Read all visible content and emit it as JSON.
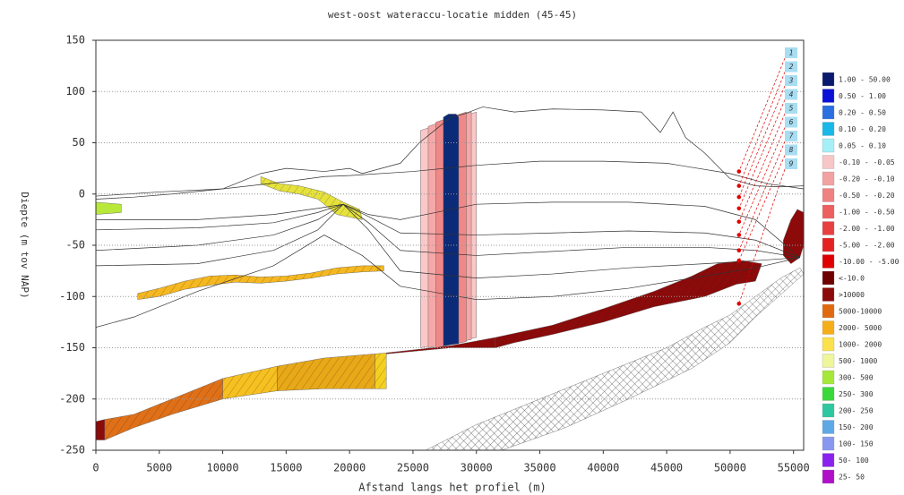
{
  "chart_data": {
    "type": "cross-section",
    "title": "west-oost wateraccu-locatie midden (45-45)",
    "xlabel": "Afstand langs het profiel (m)",
    "ylabel": "Diepte (m tov NAP)",
    "xlim": [
      0,
      55800
    ],
    "ylim": [
      -250,
      150
    ],
    "xticks": [
      0,
      5000,
      10000,
      15000,
      20000,
      25000,
      30000,
      35000,
      40000,
      45000,
      50000,
      55000
    ],
    "yticks": [
      -250,
      -200,
      -150,
      -100,
      -50,
      0,
      50,
      100,
      150
    ],
    "grid": true,
    "lines": [
      {
        "color": "#333333",
        "x": [
          0,
          3000,
          6000,
          10000,
          13000,
          15000,
          18000,
          20000,
          21000,
          24000,
          25500,
          26500,
          28000,
          29000,
          30500,
          33000,
          36000,
          40000,
          43000,
          44500,
          45500,
          46500,
          48000,
          50000,
          52000,
          54000,
          55800
        ],
        "values": [
          -5,
          -3,
          0,
          5,
          20,
          25,
          22,
          25,
          20,
          30,
          50,
          60,
          75,
          78,
          85,
          80,
          83,
          82,
          80,
          60,
          80,
          55,
          40,
          15,
          8,
          7,
          8
        ]
      },
      {
        "color": "#333333",
        "x": [
          0,
          5000,
          10000,
          15000,
          18000,
          20000,
          25000,
          30000,
          35000,
          40000,
          45000,
          50000,
          53000,
          55800
        ],
        "values": [
          -2,
          2,
          5,
          12,
          17,
          18,
          22,
          28,
          32,
          32,
          30,
          20,
          10,
          5
        ]
      },
      {
        "color": "#333333",
        "x": [
          0,
          8000,
          14000,
          17500,
          19500,
          21500,
          24000,
          30000,
          36000,
          42000,
          48000,
          52000,
          55500
        ],
        "values": [
          -25,
          -25,
          -20,
          -14,
          -10,
          -20,
          -25,
          -10,
          -8,
          -8,
          -12,
          -25,
          -62
        ]
      },
      {
        "color": "#333333",
        "x": [
          0,
          8000,
          14000,
          17500,
          19500,
          21500,
          24000,
          30000,
          36000,
          42000,
          48000,
          52000,
          55500
        ],
        "values": [
          -35,
          -33,
          -28,
          -18,
          -10,
          -22,
          -38,
          -40,
          -38,
          -36,
          -38,
          -45,
          -62
        ]
      },
      {
        "color": "#333333",
        "x": [
          0,
          8000,
          14000,
          17500,
          19500,
          21500,
          24000,
          30000,
          36000,
          42000,
          48000,
          52000,
          55500
        ],
        "values": [
          -55,
          -50,
          -40,
          -25,
          -10,
          -28,
          -55,
          -60,
          -56,
          -52,
          -52,
          -55,
          -62
        ]
      },
      {
        "color": "#333333",
        "x": [
          0,
          8000,
          14000,
          17500,
          19500,
          21500,
          24000,
          30000,
          36000,
          42000,
          48000,
          52000,
          55500
        ],
        "values": [
          -70,
          -68,
          -55,
          -35,
          -10,
          -35,
          -75,
          -82,
          -78,
          -72,
          -68,
          -65,
          -62
        ]
      },
      {
        "color": "#333333",
        "x": [
          0,
          3000,
          8000,
          14000,
          18000,
          21000,
          24000,
          30000,
          36000,
          42000,
          48000,
          52000,
          55500
        ],
        "values": [
          -130,
          -120,
          -95,
          -70,
          -40,
          -60,
          -90,
          -103,
          -100,
          -92,
          -80,
          -72,
          -62
        ]
      }
    ],
    "bodies": [
      {
        "color": "#8c0a0a",
        "hatch": false,
        "x": [
          0,
          700,
          700,
          0
        ],
        "values": [
          -222,
          -220,
          -240,
          -240
        ]
      },
      {
        "color": "#e07018",
        "hatch": true,
        "x": [
          700,
          3000,
          6000,
          10000,
          10000,
          6000,
          3000,
          700
        ],
        "values": [
          -220,
          -215,
          -200,
          -180,
          -200,
          -215,
          -228,
          -240
        ]
      },
      {
        "color": "#f6c020",
        "hatch": true,
        "x": [
          10000,
          14300,
          14300,
          10000
        ],
        "values": [
          -180,
          -168,
          -192,
          -200
        ]
      },
      {
        "color": "#e8a818",
        "hatch": true,
        "x": [
          14300,
          18000,
          22000,
          22000,
          18000,
          14300
        ],
        "values": [
          -168,
          -160,
          -156,
          -190,
          -190,
          -192
        ]
      },
      {
        "color": "#f6d020",
        "hatch": true,
        "x": [
          22000,
          22900,
          22900,
          22000
        ],
        "values": [
          -156,
          -155,
          -190,
          -190
        ]
      },
      {
        "color": "#8c0a0a",
        "hatch": false,
        "x": [
          22900,
          28000,
          31500,
          31500,
          28000,
          22900
        ],
        "values": [
          -155,
          -148,
          -140,
          -150,
          -150,
          -156
        ]
      },
      {
        "color": "#8c0a0a",
        "hatch": true,
        "x": [
          31500,
          36000,
          40000,
          44000,
          47000,
          49000,
          51000,
          52500,
          52000,
          50500,
          48000,
          44000,
          40000,
          36000,
          33000,
          31500
        ],
        "values": [
          -140,
          -128,
          -112,
          -95,
          -80,
          -68,
          -65,
          -68,
          -85,
          -88,
          -100,
          -110,
          -125,
          -137,
          -145,
          -150
        ]
      },
      {
        "color": "#8c0a0a",
        "hatch": false,
        "x": [
          54200,
          54800,
          55300,
          55800,
          55800,
          55500,
          54800,
          54200
        ],
        "values": [
          -45,
          -25,
          -15,
          -18,
          -50,
          -62,
          -68,
          -60
        ]
      },
      {
        "color": "#ffffff",
        "hatch": "cross",
        "x": [
          26000,
          30000,
          35000,
          40000,
          45000,
          48000,
          50000,
          52000,
          54000,
          55500,
          55800,
          54000,
          52000,
          50000,
          47000,
          42000,
          37000,
          32000
        ],
        "values": [
          -250,
          -225,
          -200,
          -175,
          -150,
          -130,
          -118,
          -100,
          -82,
          -72,
          -78,
          -98,
          -120,
          -145,
          -170,
          -200,
          -228,
          -250
        ]
      },
      {
        "color": "#f6b820",
        "hatch": true,
        "x": [
          3300,
          5000,
          7000,
          9000,
          11000,
          13000,
          15000,
          17000,
          19000,
          21000,
          22700,
          22700,
          21000,
          19000,
          17000,
          15000,
          13000,
          11000,
          9000,
          7000,
          5000,
          3300
        ],
        "values": [
          -97,
          -92,
          -85,
          -80,
          -79,
          -81,
          -80,
          -77,
          -72,
          -70,
          -70,
          -75,
          -76,
          -78,
          -82,
          -85,
          -87,
          -86,
          -89,
          -93,
          -100,
          -103
        ]
      },
      {
        "color": "#e6e23c",
        "hatch": true,
        "x": [
          13000,
          14500,
          16000,
          18000,
          19500,
          20800,
          21000,
          19000,
          17500,
          16000,
          14500,
          13000
        ],
        "values": [
          17,
          10,
          8,
          2,
          -8,
          -15,
          -25,
          -20,
          -5,
          0,
          3,
          10
        ]
      },
      {
        "color": "#b8e83a",
        "hatch": false,
        "x": [
          0,
          2000,
          2000,
          0
        ],
        "values": [
          -8,
          -10,
          -18,
          -20
        ]
      },
      {
        "color": "#f9c8c8",
        "hatch": false,
        "x": [
          25600,
          30000,
          30000,
          25600
        ],
        "values": [
          62,
          80,
          -140,
          -150
        ]
      },
      {
        "color": "#f4a8a8",
        "hatch": false,
        "x": [
          26200,
          29600,
          29600,
          26200
        ],
        "values": [
          66,
          80,
          -142,
          -150
        ]
      },
      {
        "color": "#f08888",
        "hatch": false,
        "x": [
          26800,
          29200,
          29200,
          26800
        ],
        "values": [
          70,
          80,
          -144,
          -150
        ]
      },
      {
        "color": "#0b2a78",
        "hatch": false,
        "x": [
          27400,
          27800,
          28400,
          28600,
          28600,
          27400
        ],
        "values": [
          75,
          78,
          78,
          75,
          -146,
          -148
        ]
      }
    ],
    "markers": {
      "color": "#e00000",
      "x": [
        50700,
        50700,
        50700,
        50700,
        50700,
        50700,
        50700,
        50700,
        50700
      ],
      "values": [
        22,
        8,
        -3,
        -14,
        -27,
        -40,
        -55,
        -65,
        -107
      ]
    },
    "boreholes": [
      "1",
      "2",
      "3",
      "4",
      "5",
      "6",
      "7",
      "8",
      "9"
    ],
    "legend": [
      {
        "label": "1.00 - 50.00",
        "color": "#0a1a6e"
      },
      {
        "label": "0.50 - 1.00",
        "color": "#0b12d6"
      },
      {
        "label": "0.20 - 0.50",
        "color": "#2b6fe0"
      },
      {
        "label": "0.10 - 0.20",
        "color": "#19b8e8"
      },
      {
        "label": "0.05 - 0.10",
        "color": "#a4f0f6"
      },
      {
        "label": "-0.10 - -0.05",
        "color": "#f7c6c6"
      },
      {
        "label": "-0.20 - -0.10",
        "color": "#f2a2a2"
      },
      {
        "label": "-0.50 - -0.20",
        "color": "#ef8181"
      },
      {
        "label": "-1.00 - -0.50",
        "color": "#ec6060"
      },
      {
        "label": "-2.00 - -1.00",
        "color": "#e84040"
      },
      {
        "label": "-5.00 - -2.00",
        "color": "#e52222"
      },
      {
        "label": "-10.00 - -5.00",
        "color": "#e00000"
      },
      {
        "label": "<-10.0",
        "color": "#6e0000"
      },
      {
        "label": ">10000",
        "color": "#8c0a0a"
      },
      {
        "label": "5000-10000",
        "color": "#e06a10"
      },
      {
        "label": "2000- 5000",
        "color": "#f6ae18"
      },
      {
        "label": "1000- 2000",
        "color": "#fbe14a"
      },
      {
        "label": "500- 1000",
        "color": "#eef59a"
      },
      {
        "label": "300- 500",
        "color": "#a5e83a"
      },
      {
        "label": "250- 300",
        "color": "#3ad83a"
      },
      {
        "label": "200- 250",
        "color": "#2ec8a0"
      },
      {
        "label": "150- 200",
        "color": "#5fa8e6"
      },
      {
        "label": "100- 150",
        "color": "#8898f0"
      },
      {
        "label": "50- 100",
        "color": "#8a22ee"
      },
      {
        "label": "25- 50",
        "color": "#b010c8"
      }
    ]
  }
}
